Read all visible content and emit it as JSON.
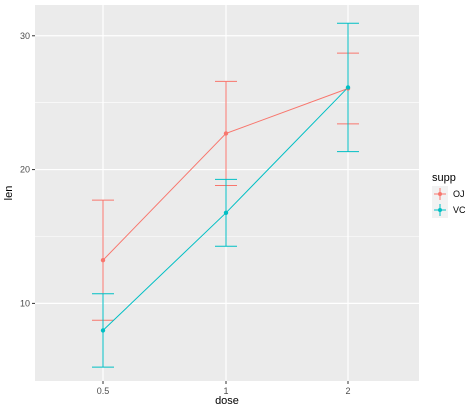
{
  "chart_data": {
    "type": "line",
    "xlabel": "dose",
    "ylabel": "len",
    "categories": [
      "0.5",
      "1",
      "2"
    ],
    "y_ticks": [
      10,
      20,
      30
    ],
    "ylim": [
      4.2,
      32.3
    ],
    "grid": true,
    "legend": {
      "title": "supp",
      "placement": "right"
    },
    "series": [
      {
        "name": "OJ",
        "color": "#F8766D",
        "values": [
          13.23,
          22.7,
          26.06
        ],
        "err_low": [
          8.74,
          18.81,
          23.42
        ],
        "err_high": [
          17.72,
          26.59,
          28.7
        ]
      },
      {
        "name": "VC",
        "color": "#00BFC4",
        "values": [
          7.98,
          16.77,
          26.14
        ],
        "err_low": [
          5.24,
          14.27,
          21.34
        ],
        "err_high": [
          10.72,
          19.27,
          30.94
        ]
      }
    ]
  }
}
